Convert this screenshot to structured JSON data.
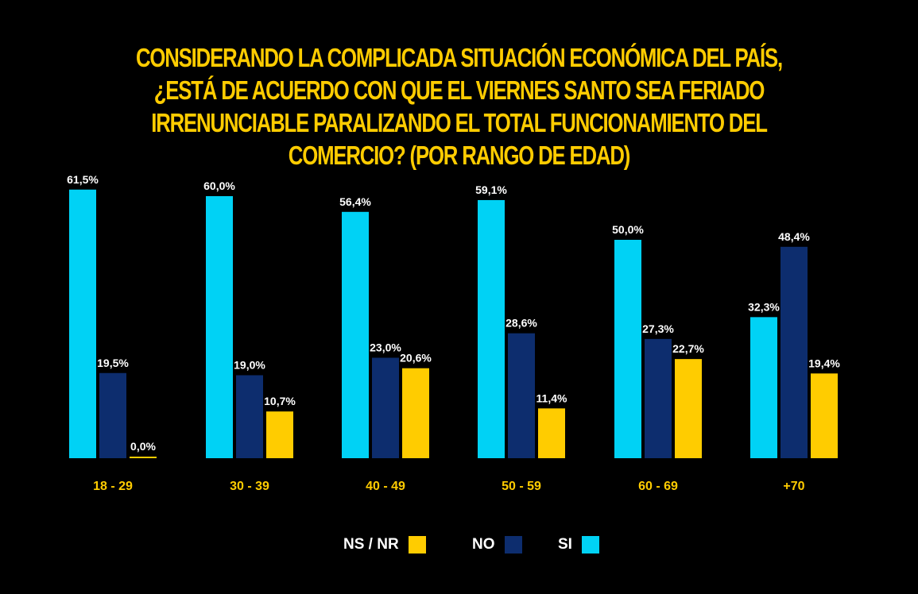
{
  "chart_data": {
    "type": "bar",
    "title_lines": [
      "CONSIDERANDO LA COMPLICADA SITUACIÓN ECONÓMICA DEL PAÍS,",
      "¿ESTÁ DE ACUERDO CON QUE EL VIERNES SANTO SEA FERIADO",
      "IRRENUNCIABLE PARALIZANDO EL TOTAL FUNCIONAMIENTO DEL",
      "COMERCIO? (POR RANGO DE EDAD)"
    ],
    "categories": [
      "18 - 29",
      "30 - 39",
      "40 - 49",
      "50 - 59",
      "60 - 69",
      "+70"
    ],
    "series": [
      {
        "name": "SI",
        "color": "#00d2f5",
        "values": [
          61.5,
          60.0,
          56.4,
          59.1,
          50.0,
          32.3
        ],
        "labels": [
          "61,5%",
          "60,0%",
          "56,4%",
          "59,1%",
          "50,0%",
          "32,3%"
        ]
      },
      {
        "name": "NO",
        "color": "#0d2d6e",
        "values": [
          19.5,
          19.0,
          23.0,
          28.6,
          27.3,
          48.4
        ],
        "labels": [
          "19,5%",
          "19,0%",
          "23,0%",
          "28,6%",
          "27,3%",
          "48,4%"
        ]
      },
      {
        "name": "NS / NR",
        "color": "#ffcc00",
        "values": [
          0.0,
          10.7,
          20.6,
          11.4,
          22.7,
          19.4
        ],
        "labels": [
          "0,0%",
          "10,7%",
          "20,6%",
          "11,4%",
          "22,7%",
          "19,4%"
        ]
      }
    ],
    "legend": [
      {
        "name": "NS / NR",
        "color": "#ffcc00"
      },
      {
        "name": "NO",
        "color": "#0d2d6e"
      },
      {
        "name": "SI",
        "color": "#00d2f5"
      }
    ],
    "ylim": [
      0,
      62
    ],
    "grid": false,
    "legend_position": "bottom-center",
    "background": "#000000",
    "title_color": "#ffcc00",
    "category_label_color": "#ffcc00",
    "value_label_color": "#ffffff"
  }
}
